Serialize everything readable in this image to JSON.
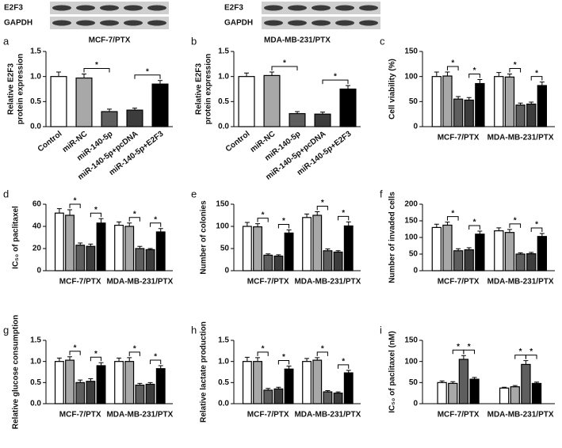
{
  "chart_data": [
    {
      "type": "bar",
      "label": "a",
      "title": "MCF-7/PTX",
      "blot_labels": [
        "E2F3",
        "GAPDH"
      ],
      "ylabel": [
        "Relative E2F3",
        "protein expression"
      ],
      "categories": [
        "Control",
        "miR-NC",
        "miR-140-5p",
        "miR-140-5p+pcDNA",
        "miR-140-5p+E2F3"
      ],
      "values": [
        1.0,
        0.97,
        0.3,
        0.33,
        0.85
      ],
      "errors": [
        0.09,
        0.08,
        0.05,
        0.04,
        0.07
      ],
      "colors": [
        "#ffffff",
        "#a8a8a8",
        "#5e5e5e",
        "#3c3c3c",
        "#000000"
      ],
      "ylim": [
        0,
        1.5
      ],
      "yticks": [
        {
          "value": 0,
          "label": "0.0"
        },
        0.5,
        {
          "value": 1,
          "label": "1.0"
        },
        1.5
      ],
      "annotations": [
        "*",
        "*"
      ]
    },
    {
      "type": "bar",
      "label": "b",
      "title": "MDA-MB-231/PTX",
      "blot_labels": [
        "E2F3",
        "GAPDH"
      ],
      "ylabel": [
        "Relative E2F3",
        "protein expression"
      ],
      "categories": [
        "Control",
        "miR-NC",
        "miR-140-5p",
        "miR-140-5p+pcDNA",
        "miR-140-5p+E2F3"
      ],
      "values": [
        1.0,
        1.02,
        0.26,
        0.25,
        0.75
      ],
      "errors": [
        0.07,
        0.07,
        0.04,
        0.04,
        0.07
      ],
      "colors": [
        "#ffffff",
        "#a8a8a8",
        "#5e5e5e",
        "#3c3c3c",
        "#000000"
      ],
      "ylim": [
        0,
        1.5
      ],
      "yticks": [
        {
          "value": 0,
          "label": "0.0"
        },
        0.5,
        {
          "value": 1,
          "label": "1.0"
        },
        1.5
      ],
      "annotations": [
        "*",
        "*"
      ]
    },
    {
      "type": "bar",
      "label": "c",
      "ylabel": [
        "Cell viability (%)"
      ],
      "categories": [
        "MCF-7/PTX",
        "MDA-MB-231/PTX"
      ],
      "series": [
        {
          "color": "#ffffff",
          "values": [
            100,
            100
          ],
          "errors": [
            9,
            8
          ]
        },
        {
          "color": "#a8a8a8",
          "values": [
            101,
            99
          ],
          "errors": [
            8,
            6
          ]
        },
        {
          "color": "#5e5e5e",
          "values": [
            55,
            43
          ],
          "errors": [
            5,
            4
          ]
        },
        {
          "color": "#3c3c3c",
          "values": [
            53,
            45
          ],
          "errors": [
            5,
            4
          ]
        },
        {
          "color": "#000000",
          "values": [
            86,
            82
          ],
          "errors": [
            8,
            7
          ]
        }
      ],
      "ylim": [
        0,
        150
      ],
      "yticks": [
        0,
        50,
        100,
        150
      ],
      "annotations": [
        "*",
        "*",
        "*",
        "*"
      ]
    },
    {
      "type": "bar",
      "label": "d",
      "ylabel": [
        "IC₅₀ of paclitaxel"
      ],
      "categories": [
        "MCF-7/PTX",
        "MDA-MB-231/PTX"
      ],
      "series": [
        {
          "color": "#ffffff",
          "values": [
            52,
            41
          ],
          "errors": [
            4,
            3
          ]
        },
        {
          "color": "#a8a8a8",
          "values": [
            50,
            40
          ],
          "errors": [
            5,
            3
          ]
        },
        {
          "color": "#5e5e5e",
          "values": [
            23,
            20
          ],
          "errors": [
            2,
            2
          ]
        },
        {
          "color": "#3c3c3c",
          "values": [
            22,
            19
          ],
          "errors": [
            2,
            1
          ]
        },
        {
          "color": "#000000",
          "values": [
            43,
            35
          ],
          "errors": [
            4,
            3
          ]
        }
      ],
      "ylim": [
        0,
        60
      ],
      "yticks": [
        0,
        20,
        40,
        60
      ],
      "annotations": [
        "*",
        "*",
        "*",
        "*"
      ]
    },
    {
      "type": "bar",
      "label": "e",
      "ylabel": [
        "Number of colonies"
      ],
      "categories": [
        "MCF-7/PTX",
        "MDA-MB-231/PTX"
      ],
      "series": [
        {
          "color": "#ffffff",
          "values": [
            100,
            120
          ],
          "errors": [
            9,
            8
          ]
        },
        {
          "color": "#a8a8a8",
          "values": [
            99,
            125
          ],
          "errors": [
            7,
            8
          ]
        },
        {
          "color": "#5e5e5e",
          "values": [
            35,
            45
          ],
          "errors": [
            3,
            4
          ]
        },
        {
          "color": "#3c3c3c",
          "values": [
            33,
            42
          ],
          "errors": [
            3,
            3
          ]
        },
        {
          "color": "#000000",
          "values": [
            85,
            101
          ],
          "errors": [
            7,
            9
          ]
        }
      ],
      "ylim": [
        0,
        150
      ],
      "yticks": [
        0,
        50,
        100,
        150
      ],
      "annotations": [
        "*",
        "*",
        "*",
        "*"
      ]
    },
    {
      "type": "bar",
      "label": "f",
      "ylabel": [
        "Number of invaded cells"
      ],
      "categories": [
        "MCF-7/PTX",
        "MDA-MB-231/PTX"
      ],
      "series": [
        {
          "color": "#ffffff",
          "values": [
            130,
            120
          ],
          "errors": [
            10,
            9
          ]
        },
        {
          "color": "#a8a8a8",
          "values": [
            137,
            115
          ],
          "errors": [
            9,
            9
          ]
        },
        {
          "color": "#5e5e5e",
          "values": [
            60,
            50
          ],
          "errors": [
            6,
            4
          ]
        },
        {
          "color": "#3c3c3c",
          "values": [
            63,
            51
          ],
          "errors": [
            6,
            4
          ]
        },
        {
          "color": "#000000",
          "values": [
            110,
            103
          ],
          "errors": [
            9,
            9
          ]
        }
      ],
      "ylim": [
        0,
        200
      ],
      "yticks": [
        0,
        50,
        100,
        150,
        200
      ],
      "annotations": [
        "*",
        "*",
        "*",
        "*"
      ]
    },
    {
      "type": "bar",
      "label": "g",
      "ylabel": [
        "Relative glucose consumption"
      ],
      "categories": [
        "MCF-7/PTX",
        "MDA-MB-231/PTX"
      ],
      "series": [
        {
          "color": "#ffffff",
          "values": [
            1.0,
            1.0
          ],
          "errors": [
            0.08,
            0.08
          ]
        },
        {
          "color": "#a8a8a8",
          "values": [
            1.03,
            1.0
          ],
          "errors": [
            0.08,
            0.09
          ]
        },
        {
          "color": "#5e5e5e",
          "values": [
            0.5,
            0.44
          ],
          "errors": [
            0.06,
            0.04
          ]
        },
        {
          "color": "#3c3c3c",
          "values": [
            0.53,
            0.46
          ],
          "errors": [
            0.06,
            0.04
          ]
        },
        {
          "color": "#000000",
          "values": [
            0.9,
            0.83
          ],
          "errors": [
            0.07,
            0.07
          ]
        }
      ],
      "ylim": [
        0,
        1.5
      ],
      "yticks": [
        {
          "value": 0,
          "label": "0.0"
        },
        0.5,
        {
          "value": 1,
          "label": "1.0"
        },
        1.5
      ],
      "annotations": [
        "*",
        "*",
        "*",
        "*"
      ]
    },
    {
      "type": "bar",
      "label": "h",
      "ylabel": [
        "Relative lactate production"
      ],
      "categories": [
        "MCF-7/PTX",
        "MDA-MB-231/PTX"
      ],
      "series": [
        {
          "color": "#ffffff",
          "values": [
            1.0,
            1.0
          ],
          "errors": [
            0.1,
            0.07
          ]
        },
        {
          "color": "#a8a8a8",
          "values": [
            1.0,
            1.03
          ],
          "errors": [
            0.09,
            0.06
          ]
        },
        {
          "color": "#5e5e5e",
          "values": [
            0.32,
            0.28
          ],
          "errors": [
            0.04,
            0.03
          ]
        },
        {
          "color": "#3c3c3c",
          "values": [
            0.35,
            0.25
          ],
          "errors": [
            0.04,
            0.03
          ]
        },
        {
          "color": "#000000",
          "values": [
            0.82,
            0.73
          ],
          "errors": [
            0.07,
            0.06
          ]
        }
      ],
      "ylim": [
        0,
        1.5
      ],
      "yticks": [
        {
          "value": 0,
          "label": "0.0"
        },
        0.5,
        {
          "value": 1,
          "label": "1.0"
        },
        1.5
      ],
      "annotations": [
        "*",
        "*",
        "*",
        "*"
      ]
    },
    {
      "type": "bar",
      "label": "i",
      "ylabel": [
        "IC₅₀ of paclitaxel (nM)"
      ],
      "categories": [
        "MCF-7/PTX",
        "MDA-MB-231/PTX"
      ],
      "series": [
        {
          "color": "#ffffff",
          "values": [
            50,
            37
          ],
          "errors": [
            4,
            2
          ]
        },
        {
          "color": "#a8a8a8",
          "values": [
            48,
            40
          ],
          "errors": [
            4,
            3
          ]
        },
        {
          "color": "#5e5e5e",
          "values": [
            105,
            93
          ],
          "errors": [
            9,
            9
          ]
        },
        {
          "color": "#000000",
          "values": [
            58,
            48
          ],
          "errors": [
            4,
            3
          ]
        }
      ],
      "ylim": [
        0,
        150
      ],
      "yticks": [
        0,
        50,
        100,
        150
      ],
      "annotations": [
        "*",
        "*",
        "*",
        "*"
      ]
    }
  ]
}
